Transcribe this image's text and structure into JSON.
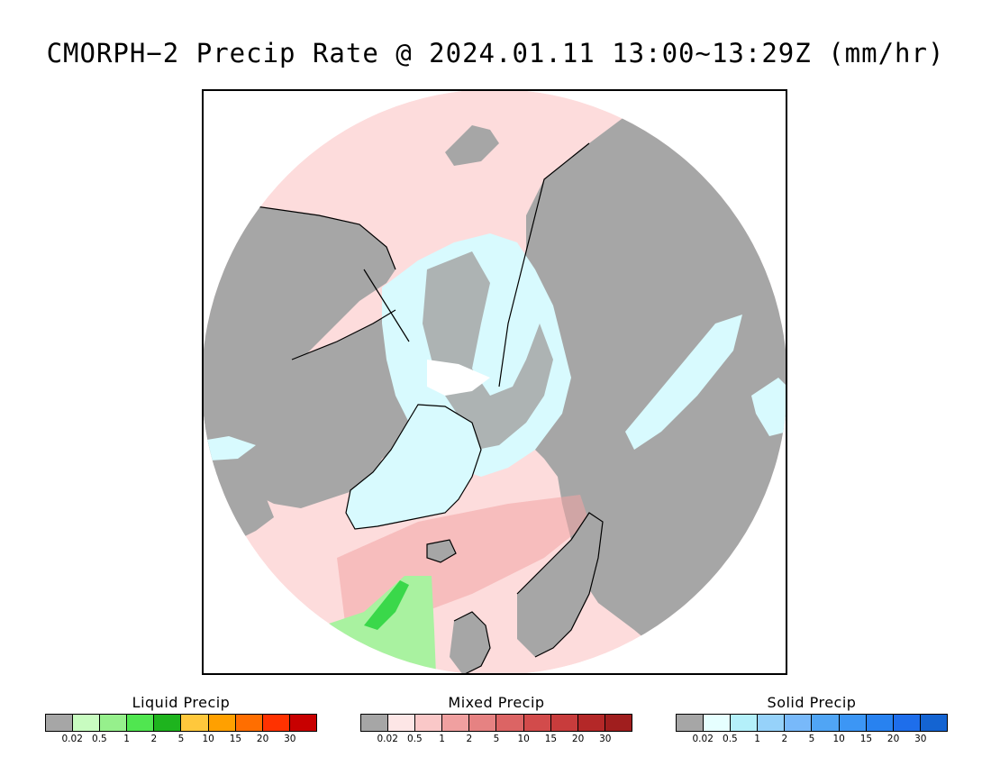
{
  "title": "CMORPH−2 Precip Rate @ 2024.01.11 13:00∼13:29Z (mm/hr)",
  "map": {
    "projection": "north polar stereographic",
    "colors": {
      "background": "#ffffff",
      "no_precip_gray": "#a6a6a6",
      "mixed_light": "#fddcdc",
      "mixed_mid": "#f2a4a4",
      "solid_light": "#d8fafe",
      "liquid_light": "#a9f2a0",
      "liquid_mid": "#3ad84a",
      "coastline": "#000000"
    }
  },
  "legends": [
    {
      "id": "liquid",
      "title": "Liquid Precip",
      "colors": [
        "#a6a6a6",
        "#c8fcc0",
        "#96f08c",
        "#50e650",
        "#1eb41e",
        "#ffc83c",
        "#ffa000",
        "#ff6e00",
        "#ff3200",
        "#c80000"
      ],
      "ticks": [
        "0.02",
        "0.5",
        "1",
        "2",
        "5",
        "10",
        "15",
        "20",
        "30"
      ]
    },
    {
      "id": "mixed",
      "title": "Mixed Precip",
      "colors": [
        "#a6a6a6",
        "#fde6e6",
        "#fac8c8",
        "#f0a0a0",
        "#e68282",
        "#dc6464",
        "#d24b4b",
        "#c83c3c",
        "#b42828",
        "#a01e1e"
      ],
      "ticks": [
        "0.02",
        "0.5",
        "1",
        "2",
        "5",
        "10",
        "15",
        "20",
        "30"
      ]
    },
    {
      "id": "solid",
      "title": "Solid Precip",
      "colors": [
        "#a6a6a6",
        "#e6ffff",
        "#b4f0fa",
        "#96d2fa",
        "#78b9fa",
        "#50a5f5",
        "#3c96f5",
        "#2882f0",
        "#1e6eeb",
        "#1464d2"
      ],
      "ticks": [
        "0.02",
        "0.5",
        "1",
        "2",
        "5",
        "10",
        "15",
        "20",
        "30"
      ]
    }
  ]
}
